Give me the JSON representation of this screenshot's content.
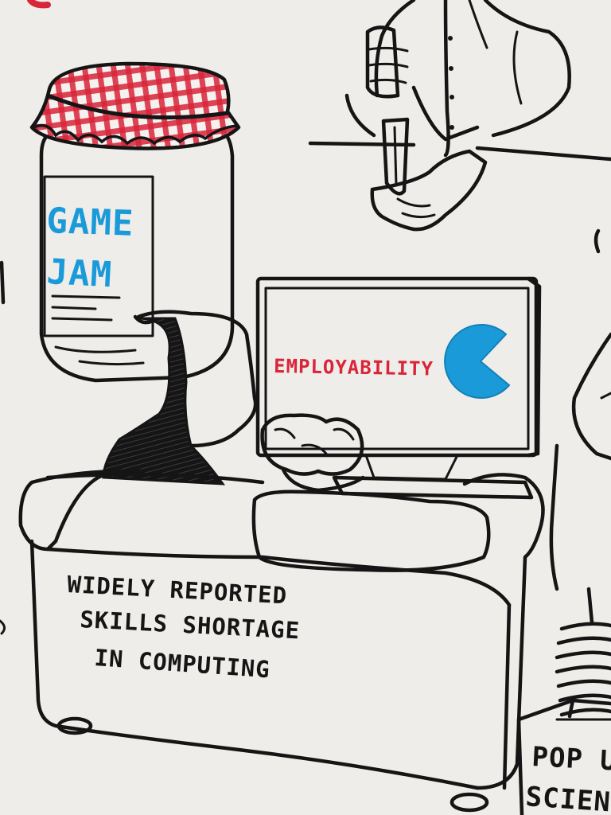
{
  "jar": {
    "label_line1": "GAME",
    "label_line2": "JAM"
  },
  "monitor": {
    "screen_text": "EMPLOYABILITY"
  },
  "sofa": {
    "caption_line1": "WIDELY REPORTED",
    "caption_line2": "SKILLS SHORTAGE",
    "caption_line3": "IN COMPUTING"
  },
  "box": {
    "label_line1": "POP U",
    "label_line2": "SCIEN"
  },
  "colors": {
    "ink": "#151515",
    "paper": "#efede9",
    "red": "#d9253a",
    "blue": "#1a9ad9"
  },
  "icons": [
    "jam-jar",
    "gingham-lid",
    "pacman",
    "knife",
    "computer-monitor",
    "sofa",
    "coil-spring"
  ]
}
